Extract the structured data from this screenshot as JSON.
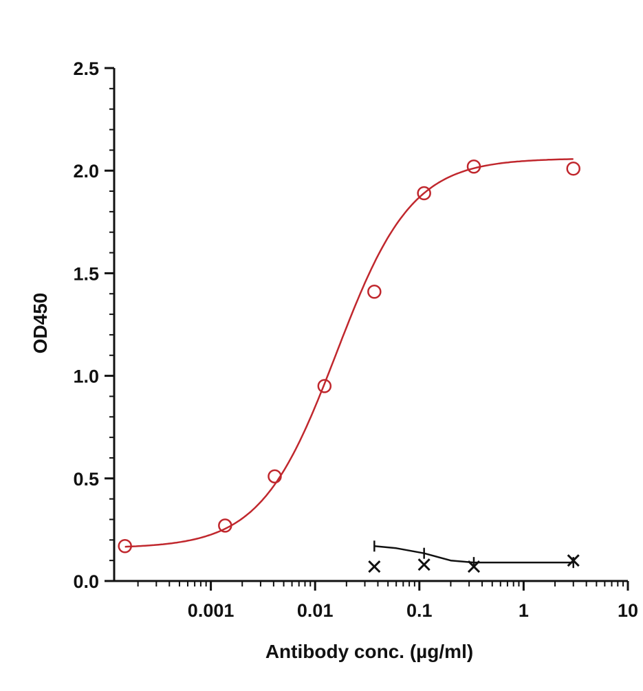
{
  "chart_data": {
    "type": "scatter",
    "title": "",
    "xlabel": "Antibody conc. (µg/ml)",
    "ylabel": "OD450",
    "x_scale": "log",
    "xlim": [
      0.0001,
      10
    ],
    "ylim": [
      0,
      2.5
    ],
    "x_ticks": [
      {
        "value": 0.001,
        "label": "0.001"
      },
      {
        "value": 0.01,
        "label": "0.01"
      },
      {
        "value": 0.1,
        "label": "0.1"
      },
      {
        "value": 1,
        "label": "1"
      },
      {
        "value": 10,
        "label": "10"
      }
    ],
    "y_ticks": [
      {
        "value": 0,
        "label": "0.0"
      },
      {
        "value": 0.5,
        "label": "0.5"
      },
      {
        "value": 1,
        "label": "1.0"
      },
      {
        "value": 1.5,
        "label": "1.5"
      },
      {
        "value": 2,
        "label": "2.0"
      },
      {
        "value": 2.5,
        "label": "2.5"
      }
    ],
    "grid": false,
    "legend": "none",
    "series": [
      {
        "marker": "circle",
        "color": "#c0272d",
        "x": [
          0.00015,
          0.00137,
          0.0041,
          0.0123,
          0.037,
          0.111,
          0.333,
          3.0
        ],
        "y": [
          0.17,
          0.27,
          0.51,
          0.95,
          1.41,
          1.89,
          2.02,
          2.01
        ],
        "curve": {
          "bottom": 0.16,
          "top": 2.06,
          "ec50": 0.016,
          "hill": 1.2
        }
      },
      {
        "marker": "x",
        "color": "#111111",
        "x": [
          0.037,
          0.111,
          0.333,
          3.0
        ],
        "y": [
          0.07,
          0.08,
          0.07,
          0.1
        ],
        "curve_x": [
          0.037,
          0.06,
          0.111,
          0.2,
          0.333,
          1.0,
          3.0
        ],
        "curve_y": [
          0.17,
          0.16,
          0.135,
          0.1,
          0.09,
          0.09,
          0.09
        ],
        "error_bars": [
          {
            "x": 0.037,
            "y": 0.17
          },
          {
            "x": 0.111,
            "y": 0.135
          },
          {
            "x": 0.333,
            "y": 0.09
          },
          {
            "x": 3.0,
            "y": 0.09
          }
        ]
      }
    ]
  }
}
